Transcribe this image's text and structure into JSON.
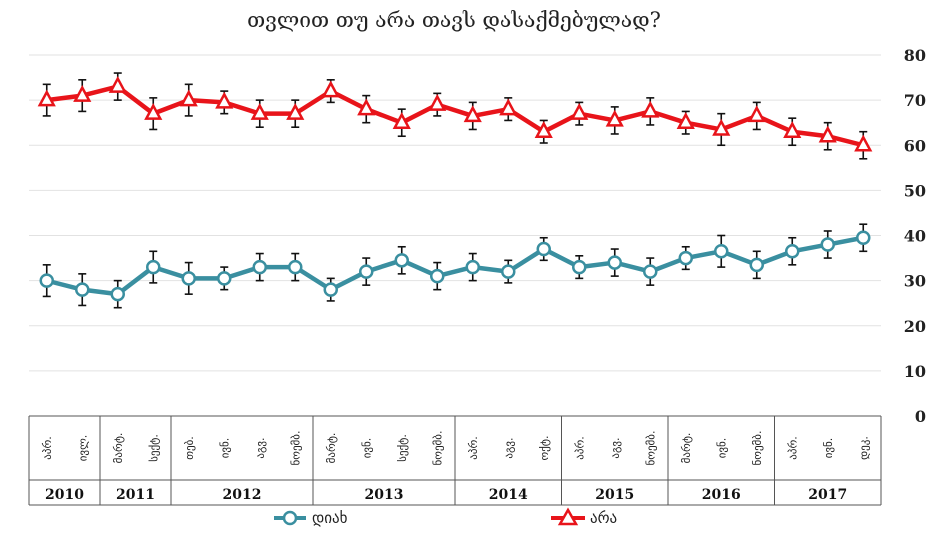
{
  "chart_data": {
    "type": "line",
    "title": "თვლით თუ არა თავს დასაქმებულად?",
    "ylim": [
      0,
      80
    ],
    "yticks": [
      0,
      10,
      20,
      30,
      40,
      50,
      60,
      70,
      80
    ],
    "grid": true,
    "categories": [
      "აპრ.",
      "ივლ.",
      "მარტ.",
      "სექტ.",
      "თებ.",
      "ივნ.",
      "აგვ.",
      "ნოემბ.",
      "მარტ.",
      "ივნ.",
      "სექტ.",
      "ნოემბ.",
      "აპრ.",
      "აგვ.",
      "ოქტ.",
      "აპრ.",
      "აგვ.",
      "ნოემბ.",
      "მარტ.",
      "ივნ.",
      "ნოემბ.",
      "აპრ.",
      "ივნ.",
      "დეკ."
    ],
    "years": [
      {
        "label": "2010",
        "count": 2
      },
      {
        "label": "2011",
        "count": 2
      },
      {
        "label": "2012",
        "count": 4
      },
      {
        "label": "2013",
        "count": 4
      },
      {
        "label": "2014",
        "count": 3
      },
      {
        "label": "2015",
        "count": 3
      },
      {
        "label": "2016",
        "count": 3
      },
      {
        "label": "2017",
        "count": 3
      }
    ],
    "series": [
      {
        "name": "დიახ",
        "color": "#3a8fa0",
        "marker": "circle",
        "values": [
          30,
          28,
          27,
          33,
          30.5,
          30.5,
          33,
          33,
          28,
          32,
          34.5,
          31,
          33,
          32,
          37,
          33,
          34,
          32,
          35,
          36.5,
          33.5,
          36.5,
          38,
          39.5
        ],
        "errors": [
          3.5,
          3.5,
          3,
          3.5,
          3.5,
          2.5,
          3,
          3,
          2.5,
          3,
          3,
          3,
          3,
          2.5,
          2.5,
          2.5,
          3,
          3,
          2.5,
          3.5,
          3,
          3,
          3,
          3
        ]
      },
      {
        "name": "არა",
        "color": "#e8141a",
        "marker": "triangle",
        "values": [
          70,
          71,
          73,
          67,
          70,
          69.5,
          67,
          67,
          72,
          68,
          65,
          69,
          66.5,
          68,
          63,
          67,
          65.5,
          67.5,
          65,
          63.5,
          66.5,
          63,
          62,
          60
        ],
        "errors": [
          3.5,
          3.5,
          3,
          3.5,
          3.5,
          2.5,
          3,
          3,
          2.5,
          3,
          3,
          2.5,
          3,
          2.5,
          2.5,
          2.5,
          3,
          3,
          2.5,
          3.5,
          3,
          3,
          3,
          3
        ]
      }
    ]
  }
}
